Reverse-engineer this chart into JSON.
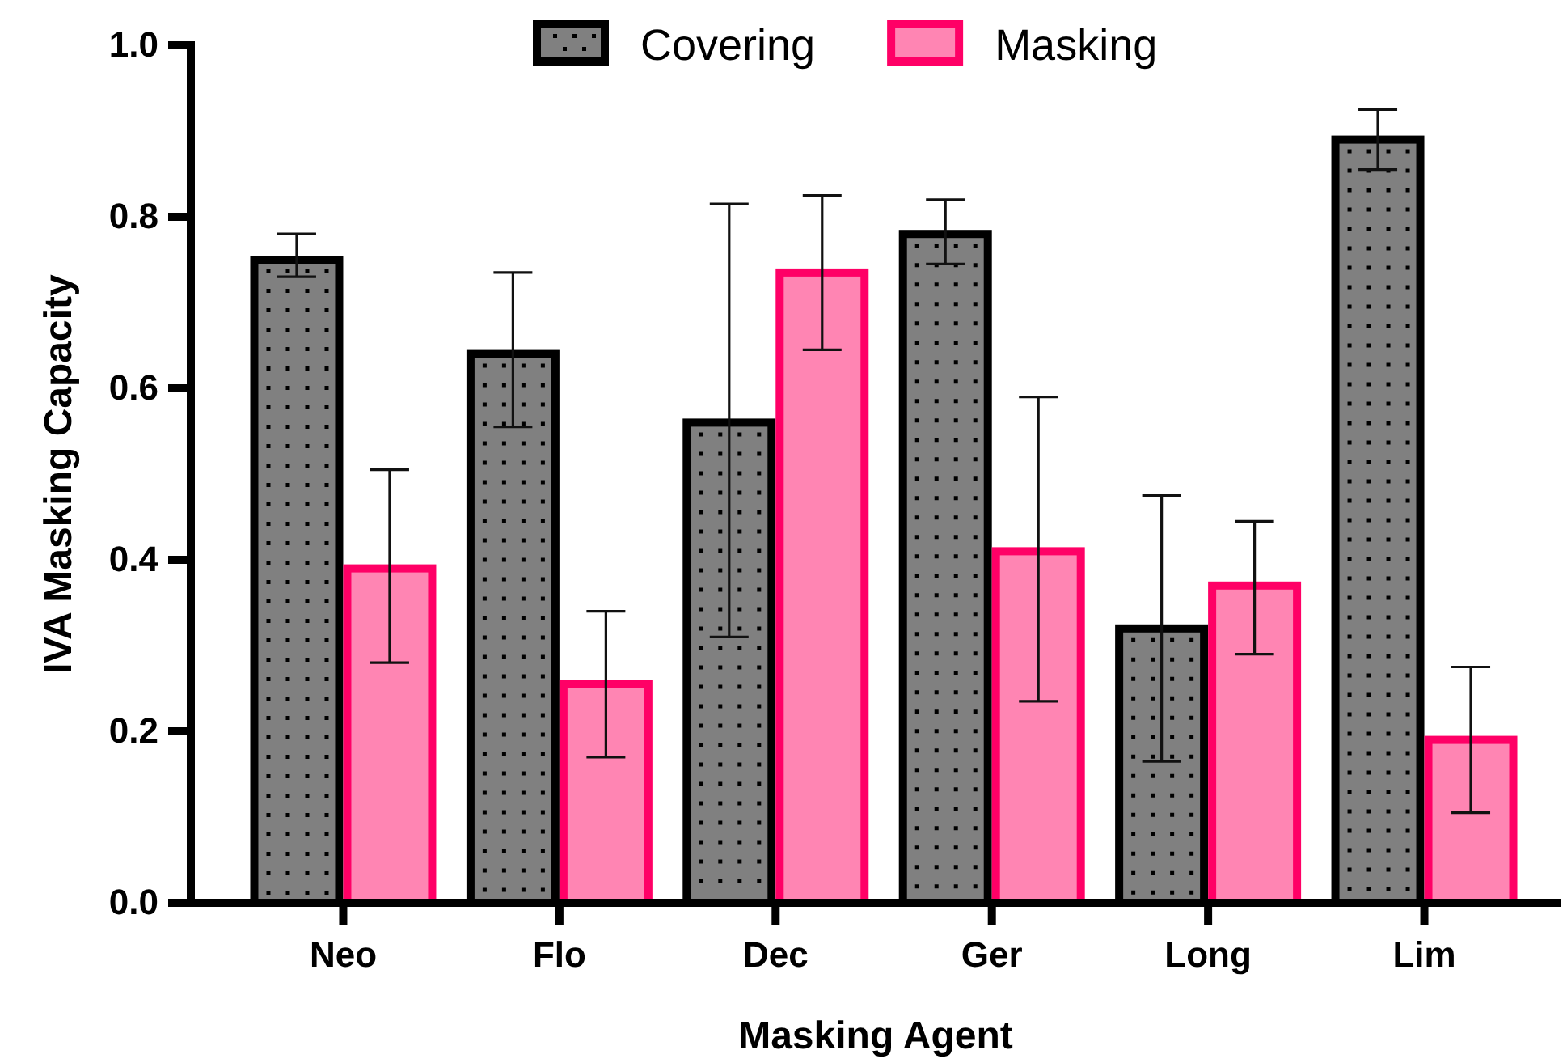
{
  "chart_data": {
    "type": "bar",
    "xlabel": "Masking Agent",
    "ylabel": "IVA Masking Capacity",
    "categories": [
      "Neo",
      "Flo",
      "Dec",
      "Ger",
      "Long",
      "Lim"
    ],
    "series": [
      {
        "name": "Covering",
        "color": "#808080",
        "values": [
          0.75,
          0.64,
          0.56,
          0.78,
          0.32,
          0.89
        ],
        "errors": [
          [
            0.73,
            0.78
          ],
          [
            0.555,
            0.735
          ],
          [
            0.31,
            0.815
          ],
          [
            0.745,
            0.82
          ],
          [
            0.165,
            0.475
          ],
          [
            0.855,
            0.925
          ]
        ]
      },
      {
        "name": "Masking",
        "color": "#ff85b3",
        "values": [
          0.39,
          0.255,
          0.735,
          0.41,
          0.37,
          0.19
        ],
        "errors": [
          [
            0.28,
            0.505
          ],
          [
            0.17,
            0.34
          ],
          [
            0.645,
            0.825
          ],
          [
            0.235,
            0.59
          ],
          [
            0.29,
            0.445
          ],
          [
            0.105,
            0.275
          ]
        ]
      }
    ],
    "ylim": [
      0,
      1
    ],
    "yticks": [
      {
        "value": 0,
        "label": "0.0"
      },
      {
        "value": 0.2,
        "label": "0.2"
      },
      {
        "value": 0.4,
        "label": "0.4"
      },
      {
        "value": 0.6,
        "label": "0.6"
      },
      {
        "value": 0.8,
        "label": "0.8"
      },
      {
        "value": 1,
        "label": "1.0"
      }
    ],
    "grid": false,
    "legend": "top"
  }
}
